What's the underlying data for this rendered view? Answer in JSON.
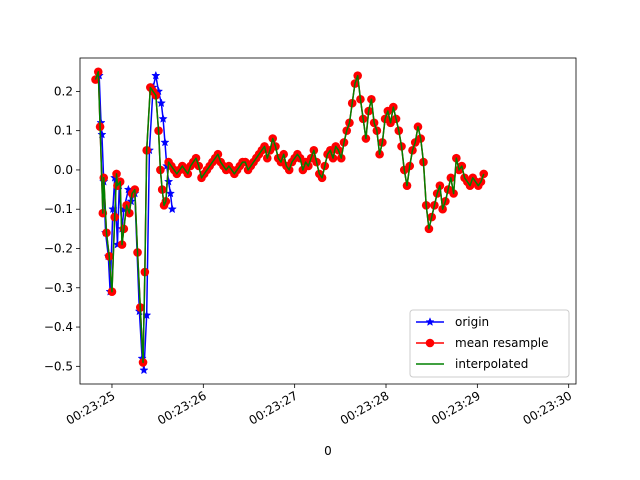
{
  "chart_data": {
    "type": "line",
    "title": "",
    "xlabel": "0",
    "ylabel": "",
    "x_range": [
      "00:23:24.65",
      "00:23:30.08"
    ],
    "ylim": [
      -0.545,
      0.285
    ],
    "x_ticks": [
      {
        "t": "00:23:25",
        "label": "00:23:25"
      },
      {
        "t": "00:23:26",
        "label": "00:23:26"
      },
      {
        "t": "00:23:27",
        "label": "00:23:27"
      },
      {
        "t": "00:23:28",
        "label": "00:23:28"
      },
      {
        "t": "00:23:29",
        "label": "00:23:29"
      },
      {
        "t": "00:23:30",
        "label": "00:23:30"
      }
    ],
    "y_ticks": [
      0.2,
      0.1,
      0.0,
      -0.1,
      -0.2,
      -0.3,
      -0.4,
      -0.5
    ],
    "y_tick_labels": [
      "0.2",
      "0.1",
      "0.0",
      "−0.1",
      "−0.2",
      "−0.3",
      "−0.4",
      "−0.5"
    ],
    "grid": false,
    "legend_position": "lower-right",
    "series": [
      {
        "name": "origin",
        "color": "#0000ff",
        "marker": "star",
        "style": "line-with-star-markers",
        "points": [
          [
            "00:23:24.83",
            0.23
          ],
          [
            "00:23:24.86",
            0.24
          ],
          [
            "00:23:24.88",
            0.12
          ],
          [
            "00:23:24.89",
            0.09
          ],
          [
            "00:23:24.91",
            -0.03
          ],
          [
            "00:23:24.93",
            -0.16
          ],
          [
            "00:23:24.96",
            -0.22
          ],
          [
            "00:23:24.98",
            -0.31
          ],
          [
            "00:23:25.01",
            -0.1
          ],
          [
            "00:23:25.03",
            -0.02
          ],
          [
            "00:23:25.06",
            -0.19
          ],
          [
            "00:23:25.08",
            -0.04
          ],
          [
            "00:23:25.11",
            -0.15
          ],
          [
            "00:23:25.13",
            -0.1
          ],
          [
            "00:23:25.18",
            -0.05
          ],
          [
            "00:23:25.21",
            -0.08
          ],
          [
            "00:23:25.25",
            -0.06
          ],
          [
            "00:23:25.30",
            -0.36
          ],
          [
            "00:23:25.33",
            -0.48
          ],
          [
            "00:23:25.35",
            -0.51
          ],
          [
            "00:23:25.38",
            -0.37
          ],
          [
            "00:23:25.41",
            0.05
          ],
          [
            "00:23:25.45",
            0.21
          ],
          [
            "00:23:25.48",
            0.24
          ],
          [
            "00:23:25.51",
            0.2
          ],
          [
            "00:23:25.54",
            0.17
          ],
          [
            "00:23:25.56",
            0.13
          ],
          [
            "00:23:25.58",
            0.07
          ],
          [
            "00:23:25.60",
            0.01
          ],
          [
            "00:23:25.62",
            -0.03
          ],
          [
            "00:23:25.64",
            -0.06
          ],
          [
            "00:23:25.66",
            -0.1
          ]
        ]
      },
      {
        "name": "mean resample",
        "color": "#ff0000",
        "marker": "circle",
        "style": "line-with-circle-markers",
        "points": [
          [
            "00:23:24.82",
            0.23
          ],
          [
            "00:23:24.85",
            0.25
          ],
          [
            "00:23:24.87",
            0.11
          ],
          [
            "00:23:24.90",
            -0.11
          ],
          [
            "00:23:24.91",
            -0.02
          ],
          [
            "00:23:24.94",
            -0.16
          ],
          [
            "00:23:24.97",
            -0.22
          ],
          [
            "00:23:25.00",
            -0.31
          ],
          [
            "00:23:25.03",
            -0.12
          ],
          [
            "00:23:25.05",
            -0.01
          ],
          [
            "00:23:25.06",
            -0.04
          ],
          [
            "00:23:25.09",
            -0.03
          ],
          [
            "00:23:25.11",
            -0.19
          ],
          [
            "00:23:25.13",
            -0.15
          ],
          [
            "00:23:25.16",
            -0.09
          ],
          [
            "00:23:25.19",
            -0.11
          ],
          [
            "00:23:25.22",
            -0.06
          ],
          [
            "00:23:25.25",
            -0.05
          ],
          [
            "00:23:25.28",
            -0.21
          ],
          [
            "00:23:25.31",
            -0.35
          ],
          [
            "00:23:25.34",
            -0.49
          ],
          [
            "00:23:25.36",
            -0.26
          ],
          [
            "00:23:25.38",
            0.05
          ],
          [
            "00:23:25.42",
            0.21
          ],
          [
            "00:23:25.45",
            0.2
          ],
          [
            "00:23:25.48",
            0.19
          ],
          [
            "00:23:25.51",
            0.1
          ],
          [
            "00:23:25.53",
            0.0
          ],
          [
            "00:23:25.55",
            -0.05
          ],
          [
            "00:23:25.57",
            -0.09
          ],
          [
            "00:23:25.59",
            -0.08
          ],
          [
            "00:23:25.62",
            0.02
          ],
          [
            "00:23:25.65",
            0.01
          ],
          [
            "00:23:25.68",
            0.0
          ],
          [
            "00:23:25.71",
            -0.01
          ],
          [
            "00:23:25.74",
            0.0
          ],
          [
            "00:23:25.77",
            0.01
          ],
          [
            "00:23:25.80",
            0.0
          ],
          [
            "00:23:25.83",
            -0.01
          ],
          [
            "00:23:25.86",
            0.01
          ],
          [
            "00:23:25.89",
            0.02
          ],
          [
            "00:23:25.92",
            0.03
          ],
          [
            "00:23:25.95",
            0.01
          ],
          [
            "00:23:25.98",
            -0.02
          ],
          [
            "00:23:26.01",
            -0.01
          ],
          [
            "00:23:26.04",
            0.0
          ],
          [
            "00:23:26.07",
            0.01
          ],
          [
            "00:23:26.10",
            0.02
          ],
          [
            "00:23:26.13",
            0.03
          ],
          [
            "00:23:26.16",
            0.04
          ],
          [
            "00:23:26.19",
            0.02
          ],
          [
            "00:23:26.22",
            0.01
          ],
          [
            "00:23:26.25",
            0.0
          ],
          [
            "00:23:26.28",
            0.01
          ],
          [
            "00:23:26.31",
            0.0
          ],
          [
            "00:23:26.34",
            -0.01
          ],
          [
            "00:23:26.37",
            0.0
          ],
          [
            "00:23:26.40",
            0.01
          ],
          [
            "00:23:26.43",
            0.02
          ],
          [
            "00:23:26.46",
            0.02
          ],
          [
            "00:23:26.49",
            0.0
          ],
          [
            "00:23:26.52",
            0.01
          ],
          [
            "00:23:26.55",
            0.02
          ],
          [
            "00:23:26.58",
            0.03
          ],
          [
            "00:23:26.61",
            0.04
          ],
          [
            "00:23:26.64",
            0.05
          ],
          [
            "00:23:26.67",
            0.06
          ],
          [
            "00:23:26.70",
            0.03
          ],
          [
            "00:23:26.73",
            0.05
          ],
          [
            "00:23:26.76",
            0.08
          ],
          [
            "00:23:26.79",
            0.06
          ],
          [
            "00:23:26.82",
            0.03
          ],
          [
            "00:23:26.85",
            0.02
          ],
          [
            "00:23:26.88",
            0.04
          ],
          [
            "00:23:26.91",
            0.01
          ],
          [
            "00:23:26.94",
            0.0
          ],
          [
            "00:23:26.97",
            0.02
          ],
          [
            "00:23:27.00",
            0.03
          ],
          [
            "00:23:27.03",
            0.04
          ],
          [
            "00:23:27.06",
            0.03
          ],
          [
            "00:23:27.09",
            0.0
          ],
          [
            "00:23:27.12",
            0.02
          ],
          [
            "00:23:27.15",
            0.01
          ],
          [
            "00:23:27.18",
            0.03
          ],
          [
            "00:23:27.21",
            0.05
          ],
          [
            "00:23:27.24",
            0.02
          ],
          [
            "00:23:27.27",
            -0.01
          ],
          [
            "00:23:27.30",
            -0.02
          ],
          [
            "00:23:27.33",
            0.01
          ],
          [
            "00:23:27.36",
            0.04
          ],
          [
            "00:23:27.39",
            0.05
          ],
          [
            "00:23:27.42",
            0.03
          ],
          [
            "00:23:27.45",
            0.06
          ],
          [
            "00:23:27.48",
            0.05
          ],
          [
            "00:23:27.51",
            0.03
          ],
          [
            "00:23:27.54",
            0.07
          ],
          [
            "00:23:27.57",
            0.1
          ],
          [
            "00:23:27.60",
            0.12
          ],
          [
            "00:23:27.63",
            0.17
          ],
          [
            "00:23:27.66",
            0.22
          ],
          [
            "00:23:27.69",
            0.24
          ],
          [
            "00:23:27.72",
            0.18
          ],
          [
            "00:23:27.75",
            0.13
          ],
          [
            "00:23:27.78",
            0.08
          ],
          [
            "00:23:27.81",
            0.15
          ],
          [
            "00:23:27.84",
            0.18
          ],
          [
            "00:23:27.87",
            0.12
          ],
          [
            "00:23:27.90",
            0.1
          ],
          [
            "00:23:27.93",
            0.04
          ],
          [
            "00:23:27.96",
            0.07
          ],
          [
            "00:23:27.99",
            0.13
          ],
          [
            "00:23:28.02",
            0.15
          ],
          [
            "00:23:28.05",
            0.12
          ],
          [
            "00:23:28.08",
            0.16
          ],
          [
            "00:23:28.11",
            0.13
          ],
          [
            "00:23:28.14",
            0.1
          ],
          [
            "00:23:28.17",
            0.06
          ],
          [
            "00:23:28.20",
            0.0
          ],
          [
            "00:23:28.23",
            -0.04
          ],
          [
            "00:23:28.26",
            0.01
          ],
          [
            "00:23:28.29",
            0.05
          ],
          [
            "00:23:28.32",
            0.07
          ],
          [
            "00:23:28.35",
            0.11
          ],
          [
            "00:23:28.38",
            0.08
          ],
          [
            "00:23:28.41",
            0.02
          ],
          [
            "00:23:28.44",
            -0.09
          ],
          [
            "00:23:28.47",
            -0.15
          ],
          [
            "00:23:28.50",
            -0.12
          ],
          [
            "00:23:28.53",
            -0.09
          ],
          [
            "00:23:28.56",
            -0.06
          ],
          [
            "00:23:28.59",
            -0.04
          ],
          [
            "00:23:28.62",
            -0.1
          ],
          [
            "00:23:28.65",
            -0.08
          ],
          [
            "00:23:28.68",
            -0.05
          ],
          [
            "00:23:28.71",
            -0.02
          ],
          [
            "00:23:28.74",
            -0.06
          ],
          [
            "00:23:28.77",
            0.03
          ],
          [
            "00:23:28.80",
            0.0
          ],
          [
            "00:23:28.83",
            0.01
          ],
          [
            "00:23:28.86",
            -0.02
          ],
          [
            "00:23:28.89",
            -0.03
          ],
          [
            "00:23:28.92",
            -0.04
          ],
          [
            "00:23:28.95",
            -0.02
          ],
          [
            "00:23:28.98",
            -0.03
          ],
          [
            "00:23:29.01",
            -0.04
          ],
          [
            "00:23:29.04",
            -0.03
          ],
          [
            "00:23:29.07",
            -0.01
          ]
        ]
      },
      {
        "name": "interpolated",
        "color": "#008000",
        "marker": "none",
        "style": "line"
      }
    ]
  }
}
